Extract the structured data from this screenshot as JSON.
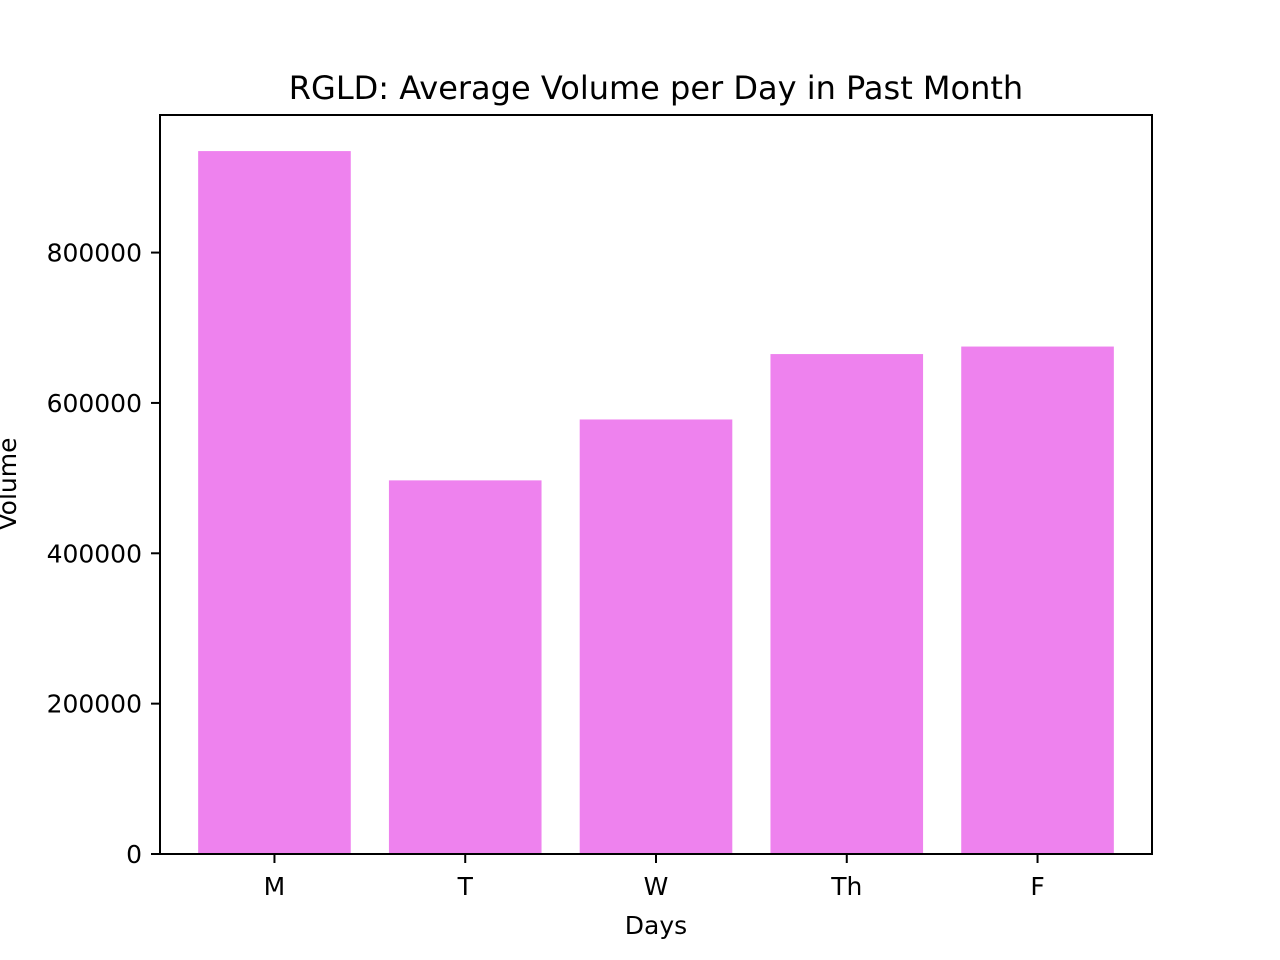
{
  "chart_data": {
    "type": "bar",
    "title": "RGLD: Average Volume per Day in Past Month",
    "xlabel": "Days",
    "ylabel": "Volume",
    "categories": [
      "M",
      "T",
      "W",
      "Th",
      "F"
    ],
    "values": [
      935000,
      497000,
      578000,
      665000,
      675000
    ],
    "ylim": [
      0,
      983000
    ],
    "yticks": [
      0,
      200000,
      400000,
      600000,
      800000
    ],
    "ytick_labels": [
      "0",
      "200000",
      "400000",
      "600000",
      "800000"
    ],
    "bar_color": "#ee82ee",
    "grid": false,
    "legend": false
  }
}
